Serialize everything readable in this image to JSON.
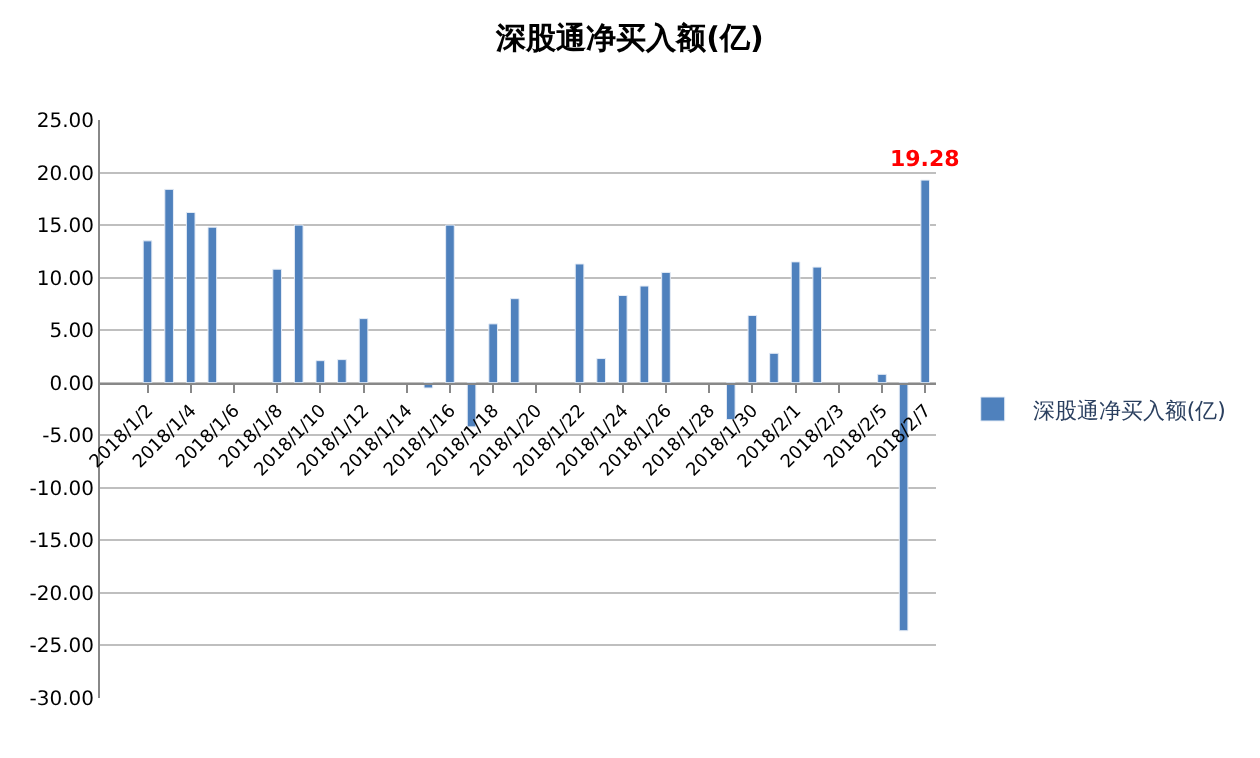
{
  "chart_data": {
    "type": "bar",
    "title": "深股通净买入额(亿)",
    "categories": [
      "2018/1/2",
      null,
      "2018/1/4",
      null,
      "2018/1/6",
      null,
      "2018/1/8",
      null,
      "2018/1/10",
      null,
      "2018/1/12",
      null,
      "2018/1/14",
      null,
      "2018/1/16",
      null,
      "2018/1/18",
      null,
      "2018/1/20",
      null,
      "2018/1/22",
      null,
      "2018/1/24",
      null,
      "2018/1/26",
      null,
      "2018/1/28",
      null,
      "2018/1/30",
      null,
      "2018/2/1",
      null,
      "2018/2/3",
      null,
      "2018/2/5",
      null,
      "2018/2/7"
    ],
    "series": [
      {
        "name": "深股通净买入额(亿)",
        "color": "#4f81bd",
        "values": [
          13.5,
          18.4,
          16.2,
          14.8,
          null,
          null,
          10.8,
          15.0,
          2.1,
          2.2,
          6.1,
          null,
          null,
          -0.5,
          15.0,
          -4.2,
          5.6,
          8.0,
          null,
          null,
          11.3,
          2.3,
          8.3,
          9.2,
          10.5,
          null,
          null,
          -3.5,
          6.4,
          2.8,
          11.5,
          11.0,
          null,
          null,
          0.8,
          -23.6,
          19.28
        ],
        "value_labels": [
          null,
          null,
          null,
          null,
          null,
          null,
          null,
          null,
          null,
          null,
          null,
          null,
          null,
          null,
          null,
          null,
          null,
          null,
          null,
          null,
          null,
          null,
          null,
          null,
          null,
          null,
          null,
          null,
          null,
          null,
          null,
          null,
          null,
          null,
          null,
          null,
          "19.28"
        ]
      }
    ],
    "ylim": [
      -30,
      25
    ],
    "yticks": [
      {
        "value": -30,
        "label": "-30.00"
      },
      {
        "value": -25,
        "label": "-25.00"
      },
      {
        "value": -20,
        "label": "-20.00"
      },
      {
        "value": -15,
        "label": "-15.00"
      },
      {
        "value": -10,
        "label": "-10.00"
      },
      {
        "value": -5,
        "label": "-5.00"
      },
      {
        "value": 0,
        "label": "0.00"
      },
      {
        "value": 5,
        "label": "5.00"
      },
      {
        "value": 10,
        "label": "10.00"
      },
      {
        "value": 15,
        "label": "15.00"
      },
      {
        "value": 20,
        "label": "20.00"
      },
      {
        "value": 25,
        "label": "25.00"
      }
    ],
    "grid": "y",
    "legend": "right"
  }
}
